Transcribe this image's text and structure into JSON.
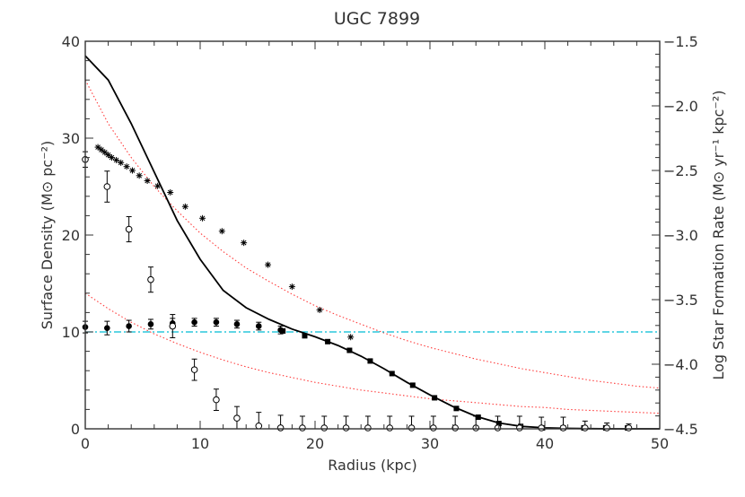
{
  "chart_data": {
    "type": "scatter",
    "title": "UGC 7899",
    "xlabel": "Radius (kpc)",
    "ylabel": "Surface Density (M⊙ pc⁻²)",
    "y2label": "Log Star Formation Rate (M⊙ yr⁻¹ kpc⁻²)",
    "xlim": [
      0,
      50
    ],
    "ylim": [
      0,
      40
    ],
    "y2lim": [
      -4.5,
      -1.5
    ],
    "xticks": [
      0,
      10,
      20,
      30,
      40,
      50
    ],
    "yticks": [
      0,
      10,
      20,
      30,
      40
    ],
    "y2ticks": [
      -4.5,
      -4.0,
      -3.5,
      -3.0,
      -2.5,
      -2.0,
      -1.5
    ],
    "grid": false,
    "colors": {
      "axis": "#333333",
      "dotted": "#ff3b3b",
      "dashdot": "#00bcd4",
      "marks": "#000000"
    },
    "series": [
      {
        "style": "solid-line-black",
        "axis": "left",
        "x": [
          0,
          2,
          4,
          6,
          8,
          10,
          12,
          14,
          16,
          18,
          20,
          22,
          24,
          26,
          28,
          30,
          32,
          34,
          36,
          38,
          40,
          42,
          44,
          46,
          48,
          50
        ],
        "y": [
          38.5,
          36,
          31.5,
          26.5,
          21.5,
          17.5,
          14.3,
          12.5,
          11.3,
          10.3,
          9.5,
          8.6,
          7.5,
          6.2,
          4.8,
          3.5,
          2.3,
          1.3,
          0.6,
          0.25,
          0.1,
          0.05,
          0.02,
          0,
          0,
          0
        ]
      },
      {
        "style": "filled-squares",
        "axis": "left",
        "x": [
          17.2,
          19.1,
          21.1,
          23.0,
          24.8,
          26.7,
          28.5,
          30.4,
          32.3,
          34.2,
          36.0,
          37.9,
          39.8,
          41.6,
          43.4,
          45.3,
          47.2
        ],
        "y": [
          10.1,
          9.6,
          9.0,
          8.1,
          7.0,
          5.7,
          4.5,
          3.2,
          2.1,
          1.2,
          0.55,
          0.25,
          0.1,
          0.05,
          0.03,
          0.02,
          0.01
        ]
      },
      {
        "style": "filled-circles",
        "axis": "left",
        "x": [
          0,
          1.9,
          3.8,
          5.7,
          7.6,
          9.5,
          11.4,
          13.2,
          15.1,
          17.0
        ],
        "y": [
          10.5,
          10.4,
          10.6,
          10.8,
          10.9,
          11.0,
          11.0,
          10.8,
          10.6,
          10.2
        ],
        "err": [
          0.6,
          0.7,
          0.6,
          0.5,
          0.5,
          0.4,
          0.4,
          0.4,
          0.4,
          0.4
        ]
      },
      {
        "style": "open-circles",
        "axis": "left",
        "x": [
          0,
          1.9,
          3.8,
          5.7,
          7.6,
          9.5,
          11.4,
          13.2,
          15.1,
          17.0,
          18.9,
          20.8,
          22.7,
          24.6,
          26.5,
          28.4,
          30.3,
          32.2,
          34.0,
          35.9,
          37.8,
          39.7,
          41.6,
          43.5,
          45.4,
          47.3
        ],
        "y": [
          27.8,
          25.0,
          20.6,
          15.4,
          10.6,
          6.1,
          3.0,
          1.1,
          0.3,
          0.1,
          0,
          0,
          0,
          0,
          0,
          0,
          0,
          0,
          0,
          0,
          0,
          0,
          0,
          0,
          0,
          0
        ],
        "err": [
          0.8,
          1.6,
          1.3,
          1.3,
          1.2,
          1.1,
          1.1,
          1.2,
          1.4,
          1.3,
          1.3,
          1.3,
          1.3,
          1.3,
          1.3,
          1.3,
          1.3,
          1.3,
          1.3,
          1.3,
          1.3,
          1.2,
          1.2,
          0.8,
          0.6,
          0.5
        ]
      },
      {
        "style": "asterisks",
        "axis": "right",
        "x": [
          1.1,
          1.4,
          1.7,
          2.0,
          2.3,
          2.7,
          3.1,
          3.6,
          4.1,
          4.7,
          5.4,
          6.3,
          7.4,
          8.7,
          10.2,
          11.9,
          13.8,
          15.9,
          18.0,
          20.4,
          23.1
        ],
        "y": [
          -2.32,
          -2.34,
          -2.36,
          -2.38,
          -2.4,
          -2.42,
          -2.44,
          -2.47,
          -2.5,
          -2.54,
          -2.58,
          -2.62,
          -2.67,
          -2.78,
          -2.87,
          -2.97,
          -3.06,
          -3.23,
          -3.4,
          -3.58,
          -3.79
        ]
      }
    ],
    "reference_curves": [
      {
        "style": "red-dotted",
        "axis": "left",
        "x": [
          0,
          2,
          4,
          6,
          8,
          10,
          12,
          14,
          16,
          18,
          20,
          22,
          24,
          26,
          28,
          30,
          32,
          34,
          36,
          38,
          40,
          42,
          44,
          46,
          48,
          50
        ],
        "y": [
          36.0,
          31.5,
          28.0,
          25.0,
          22.5,
          20.2,
          18.3,
          16.6,
          15.2,
          13.9,
          12.7,
          11.7,
          10.8,
          9.9,
          9.1,
          8.4,
          7.8,
          7.2,
          6.7,
          6.2,
          5.8,
          5.4,
          5.0,
          4.7,
          4.4,
          4.2
        ]
      },
      {
        "style": "red-dotted",
        "axis": "left",
        "x": [
          0,
          2,
          4,
          6,
          8,
          10,
          12,
          14,
          16,
          18,
          20,
          22,
          24,
          26,
          28,
          30,
          32,
          34,
          36,
          38,
          40,
          42,
          44,
          46,
          48,
          50
        ],
        "y": [
          14.0,
          12.4,
          11.0,
          9.8,
          8.8,
          7.9,
          7.1,
          6.4,
          5.8,
          5.3,
          4.8,
          4.4,
          4.0,
          3.7,
          3.4,
          3.1,
          2.9,
          2.7,
          2.5,
          2.3,
          2.2,
          2.0,
          1.9,
          1.8,
          1.7,
          1.6
        ]
      },
      {
        "style": "cyan-dashdot",
        "axis": "left",
        "y": 10
      }
    ]
  }
}
